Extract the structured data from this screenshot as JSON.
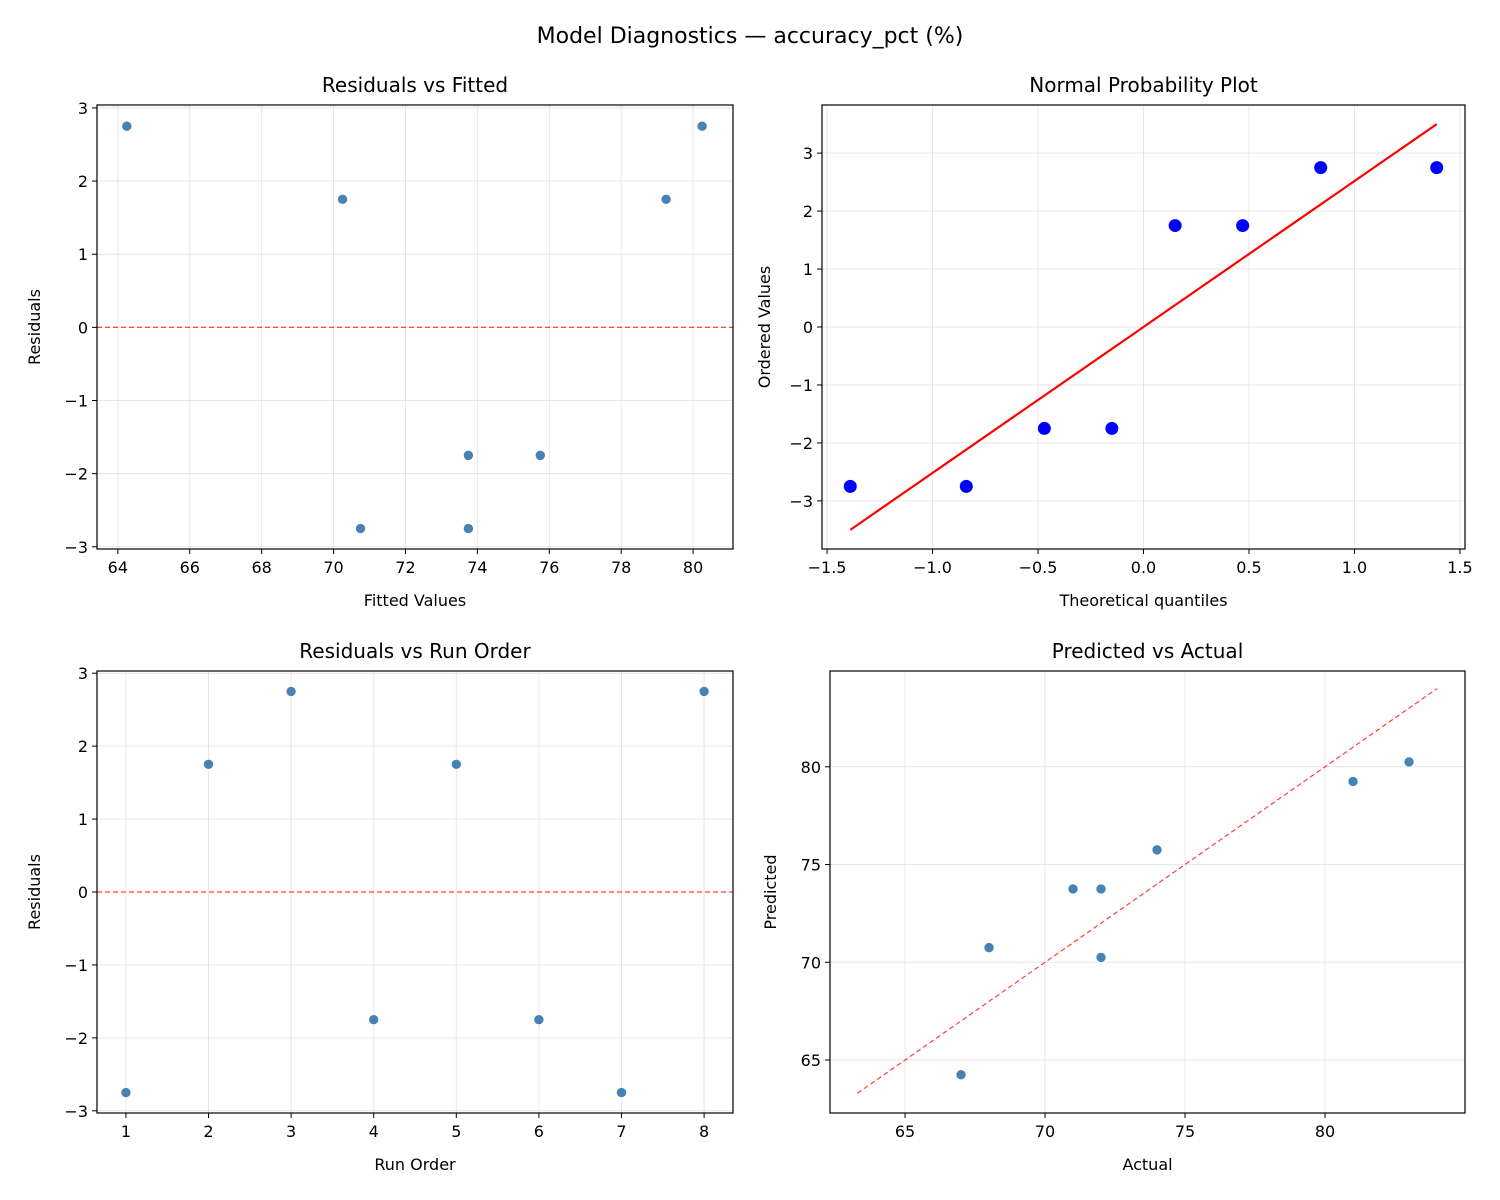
{
  "title": "Model Diagnostics — accuracy_pct (%)",
  "chart_data": [
    {
      "type": "scatter",
      "title": "Residuals vs Fitted",
      "xlabel": "Fitted Values",
      "ylabel": "Residuals",
      "xlim": [
        63.42,
        81.11
      ],
      "ylim": [
        -3.03,
        3.04
      ],
      "xticks": [
        64,
        66,
        68,
        70,
        72,
        74,
        76,
        78,
        80
      ],
      "yticks": [
        -3,
        -2,
        -1,
        0,
        1,
        2,
        3
      ],
      "grid": true,
      "point_color": "#4682b4",
      "x": [
        64.25,
        70.25,
        70.75,
        73.75,
        73.75,
        75.75,
        79.25,
        80.25
      ],
      "y": [
        2.75,
        1.75,
        -2.75,
        -1.75,
        -2.75,
        -1.75,
        1.75,
        2.75
      ],
      "reference_line": {
        "kind": "horizontal",
        "y": 0,
        "color": "#ff0000",
        "style": "dashed"
      }
    },
    {
      "type": "scatter",
      "title": "Normal Probability Plot",
      "xlabel": "Theoretical quantiles",
      "ylabel": "Ordered Values",
      "xlim": [
        -1.524,
        1.524
      ],
      "ylim": [
        -3.83,
        3.83
      ],
      "xticks": [
        -1.5,
        -1.0,
        -0.5,
        0.0,
        0.5,
        1.0,
        1.5
      ],
      "yticks": [
        -3,
        -2,
        -1,
        0,
        1,
        2,
        3
      ],
      "grid": true,
      "point_color": "#0000ff",
      "x": [
        -1.39,
        -0.84,
        -0.47,
        -0.15,
        0.15,
        0.47,
        0.84,
        1.39
      ],
      "y": [
        -2.75,
        -2.75,
        -1.75,
        -1.75,
        1.75,
        1.75,
        2.75,
        2.75
      ],
      "reference_line": {
        "kind": "segment",
        "x": [
          -1.39,
          1.39
        ],
        "y": [
          -3.5,
          3.5
        ],
        "color": "#ff0000",
        "style": "solid"
      }
    },
    {
      "type": "scatter",
      "title": "Residuals vs Run Order",
      "xlabel": "Run Order",
      "ylabel": "Residuals",
      "xlim": [
        0.65,
        8.35
      ],
      "ylim": [
        -3.03,
        3.03
      ],
      "xticks": [
        1,
        2,
        3,
        4,
        5,
        6,
        7,
        8
      ],
      "yticks": [
        -3,
        -2,
        -1,
        0,
        1,
        2,
        3
      ],
      "grid": true,
      "point_color": "#4682b4",
      "x": [
        1,
        2,
        3,
        4,
        5,
        6,
        7,
        8
      ],
      "y": [
        -2.75,
        1.75,
        2.75,
        -1.75,
        1.75,
        -1.75,
        -2.75,
        2.75
      ],
      "reference_line": {
        "kind": "horizontal",
        "y": 0,
        "color": "#ff0000",
        "style": "dashed"
      }
    },
    {
      "type": "scatter",
      "title": "Predicted vs Actual",
      "xlabel": "Actual",
      "ylabel": "Predicted",
      "xlim": [
        62.32,
        85.0
      ],
      "ylim": [
        62.29,
        84.9
      ],
      "xticks": [
        65,
        70,
        75,
        80
      ],
      "yticks": [
        65,
        70,
        75,
        80
      ],
      "grid": true,
      "point_color": "#4682b4",
      "x": [
        67,
        68,
        71,
        72,
        72,
        74,
        81,
        83
      ],
      "y": [
        64.25,
        70.75,
        73.75,
        73.75,
        70.25,
        75.75,
        79.25,
        80.25
      ],
      "reference_line": {
        "kind": "segment",
        "x": [
          63.3,
          84.0
        ],
        "y": [
          63.3,
          84.0
        ],
        "color": "#ff0000",
        "style": "dashed"
      }
    }
  ]
}
